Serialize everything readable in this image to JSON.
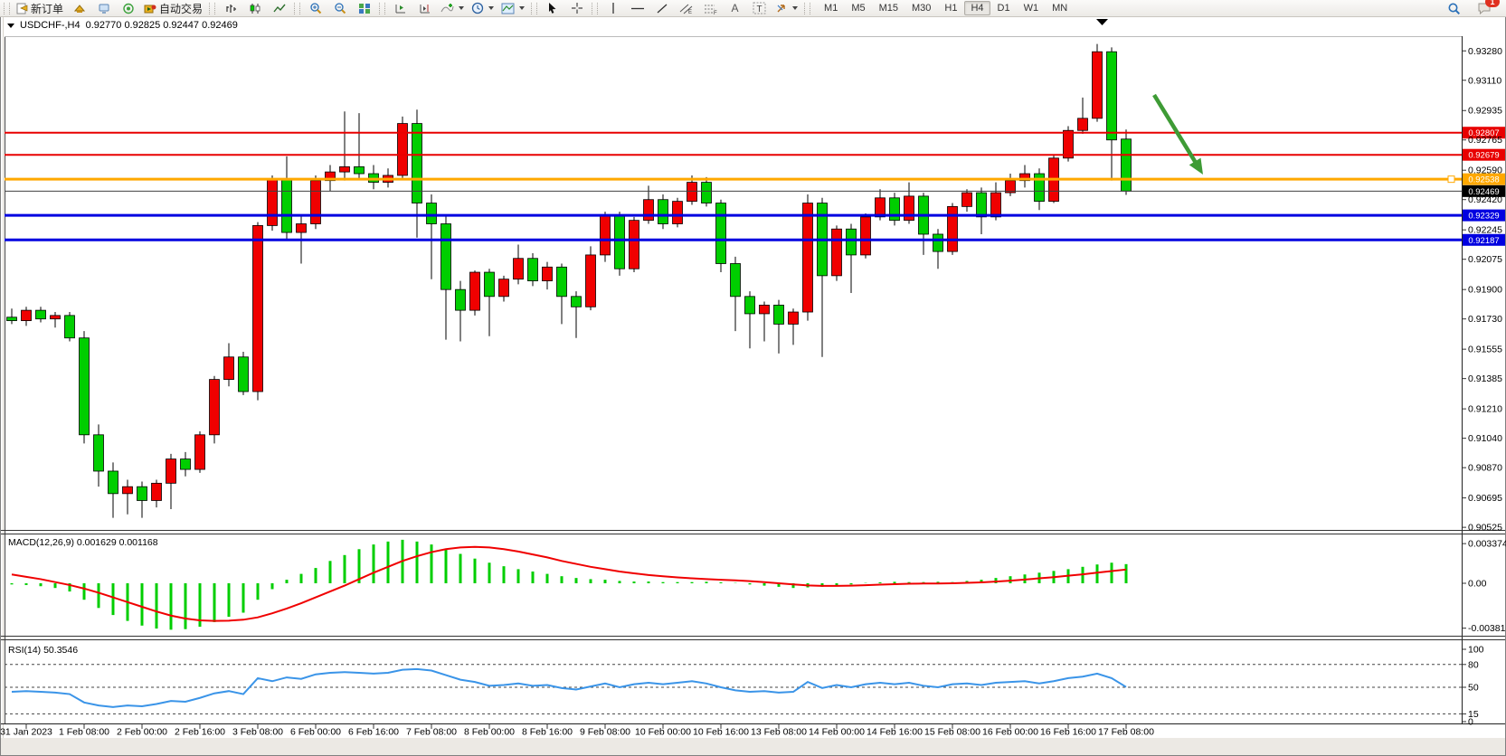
{
  "toolbar": {
    "new_order_label": "新订单",
    "autotrade_label": "自动交易",
    "text_tool_label": "A",
    "label_tool_label": "T",
    "timeframes": [
      "M1",
      "M5",
      "M15",
      "M30",
      "H1",
      "H4",
      "D1",
      "W1",
      "MN"
    ],
    "active_timeframe": "H4",
    "notification_count": "1"
  },
  "chart_window": {
    "title": {
      "symbol_period": "USDCHF-,H4",
      "ohlc": "0.92770 0.92825 0.92447 0.92469"
    }
  },
  "chart_data": [
    {
      "type": "candlestick",
      "symbol": "USDCHF-",
      "timeframe": "H4",
      "current": {
        "open": 0.9277,
        "high": 0.92825,
        "low": 0.92447,
        "close": 0.92469
      },
      "up_color": "#F00000",
      "down_color": "#00CE00",
      "ylim": [
        0.90515,
        0.93365
      ],
      "y_ticks": [
        "0.93280",
        "0.93110",
        "0.92935",
        "0.92765",
        "0.92590",
        "0.92420",
        "0.92245",
        "0.92075",
        "0.91900",
        "0.91730",
        "0.91555",
        "0.91385",
        "0.91210",
        "0.91040",
        "0.90870",
        "0.90695",
        "0.90525"
      ],
      "x_labels": [
        "31 Jan 2023",
        "1 Feb 08:00",
        "2 Feb 00:00",
        "2 Feb 16:00",
        "3 Feb 08:00",
        "6 Feb 00:00",
        "6 Feb 16:00",
        "7 Feb 08:00",
        "8 Feb 00:00",
        "8 Feb 16:00",
        "9 Feb 08:00",
        "10 Feb 00:00",
        "10 Feb 16:00",
        "13 Feb 08:00",
        "14 Feb 00:00",
        "14 Feb 16:00",
        "15 Feb 08:00",
        "16 Feb 00:00",
        "16 Feb 16:00",
        "17 Feb 08:00"
      ],
      "hlines": [
        {
          "price": 0.92807,
          "label": "0.92807",
          "color": "#E80000",
          "width": 2
        },
        {
          "price": 0.92679,
          "label": "0.92679",
          "color": "#E80000",
          "width": 2
        },
        {
          "price": 0.92538,
          "label": "0.92538",
          "color": "#FFA800",
          "width": 3,
          "handle": true
        },
        {
          "price": 0.92469,
          "label": "0.92469",
          "color": "#404040",
          "width": 1,
          "badge": "#000000"
        },
        {
          "price": 0.92329,
          "label": "0.92329",
          "color": "#0000E0",
          "width": 3
        },
        {
          "price": 0.92187,
          "label": "0.92187",
          "color": "#0000E0",
          "width": 3
        }
      ],
      "arrow_annotation": {
        "from": [
          1276,
          105
        ],
        "to": [
          1330,
          193
        ],
        "color": "#3E9B35"
      },
      "candles": [
        [
          0.9174,
          0.9179,
          0.917,
          0.9172
        ],
        [
          0.9172,
          0.918,
          0.9169,
          0.9178
        ],
        [
          0.9178,
          0.918,
          0.9171,
          0.9173
        ],
        [
          0.9173,
          0.9177,
          0.9168,
          0.9175
        ],
        [
          0.9175,
          0.9177,
          0.916,
          0.9162
        ],
        [
          0.9162,
          0.9166,
          0.9101,
          0.9106
        ],
        [
          0.9106,
          0.9112,
          0.9076,
          0.9085
        ],
        [
          0.9085,
          0.909,
          0.9058,
          0.9072
        ],
        [
          0.9072,
          0.908,
          0.906,
          0.9076
        ],
        [
          0.9076,
          0.9079,
          0.9058,
          0.9068
        ],
        [
          0.9068,
          0.908,
          0.9064,
          0.9078
        ],
        [
          0.9078,
          0.9095,
          0.9063,
          0.9092
        ],
        [
          0.9092,
          0.9096,
          0.9082,
          0.9086
        ],
        [
          0.9086,
          0.9108,
          0.9084,
          0.9106
        ],
        [
          0.9106,
          0.914,
          0.9101,
          0.9138
        ],
        [
          0.9138,
          0.9159,
          0.9134,
          0.9151
        ],
        [
          0.9151,
          0.9154,
          0.9129,
          0.9131
        ],
        [
          0.9131,
          0.9229,
          0.9126,
          0.9227
        ],
        [
          0.9227,
          0.9256,
          0.9224,
          0.9254
        ],
        [
          0.9254,
          0.9267,
          0.9219,
          0.9223
        ],
        [
          0.9223,
          0.9233,
          0.9205,
          0.9228
        ],
        [
          0.9228,
          0.9256,
          0.9225,
          0.9253
        ],
        [
          0.9253,
          0.9262,
          0.9247,
          0.9258
        ],
        [
          0.9258,
          0.9293,
          0.9253,
          0.9261
        ],
        [
          0.9261,
          0.9292,
          0.9254,
          0.9257
        ],
        [
          0.9257,
          0.9262,
          0.9248,
          0.9252
        ],
        [
          0.9252,
          0.926,
          0.9249,
          0.9256
        ],
        [
          0.9256,
          0.929,
          0.9254,
          0.9286
        ],
        [
          0.9286,
          0.9294,
          0.922,
          0.924
        ],
        [
          0.924,
          0.9245,
          0.9196,
          0.9228
        ],
        [
          0.9228,
          0.9233,
          0.9161,
          0.919
        ],
        [
          0.919,
          0.9195,
          0.916,
          0.9178
        ],
        [
          0.9178,
          0.9201,
          0.9175,
          0.92
        ],
        [
          0.92,
          0.9202,
          0.9163,
          0.9186
        ],
        [
          0.9186,
          0.9198,
          0.9183,
          0.9196
        ],
        [
          0.9196,
          0.9216,
          0.9193,
          0.9208
        ],
        [
          0.9208,
          0.9211,
          0.9192,
          0.9195
        ],
        [
          0.9195,
          0.9206,
          0.919,
          0.9203
        ],
        [
          0.9203,
          0.9205,
          0.917,
          0.9186
        ],
        [
          0.9186,
          0.9189,
          0.9162,
          0.918
        ],
        [
          0.918,
          0.9215,
          0.9178,
          0.921
        ],
        [
          0.921,
          0.9235,
          0.9206,
          0.9233
        ],
        [
          0.9233,
          0.9235,
          0.9198,
          0.9202
        ],
        [
          0.9202,
          0.9232,
          0.92,
          0.923
        ],
        [
          0.923,
          0.925,
          0.9228,
          0.9242
        ],
        [
          0.9242,
          0.9245,
          0.9225,
          0.9228
        ],
        [
          0.9228,
          0.9243,
          0.9226,
          0.9241
        ],
        [
          0.9241,
          0.9256,
          0.9239,
          0.9252
        ],
        [
          0.9252,
          0.9255,
          0.9238,
          0.924
        ],
        [
          0.924,
          0.9242,
          0.92,
          0.9205
        ],
        [
          0.9205,
          0.9209,
          0.9166,
          0.9186
        ],
        [
          0.9186,
          0.9189,
          0.9156,
          0.9176
        ],
        [
          0.9176,
          0.9183,
          0.916,
          0.9181
        ],
        [
          0.9181,
          0.9184,
          0.9153,
          0.917
        ],
        [
          0.917,
          0.9179,
          0.9158,
          0.9177
        ],
        [
          0.9177,
          0.9245,
          0.9172,
          0.924
        ],
        [
          0.924,
          0.9243,
          0.9151,
          0.9198
        ],
        [
          0.9198,
          0.9227,
          0.9195,
          0.9225
        ],
        [
          0.9225,
          0.9228,
          0.9188,
          0.921
        ],
        [
          0.921,
          0.9234,
          0.9208,
          0.9232
        ],
        [
          0.9232,
          0.9248,
          0.923,
          0.9243
        ],
        [
          0.9243,
          0.9246,
          0.9227,
          0.923
        ],
        [
          0.923,
          0.9252,
          0.9228,
          0.9244
        ],
        [
          0.9244,
          0.9246,
          0.921,
          0.9222
        ],
        [
          0.9222,
          0.9225,
          0.9202,
          0.9212
        ],
        [
          0.9212,
          0.924,
          0.921,
          0.9238
        ],
        [
          0.9238,
          0.9248,
          0.9235,
          0.9246
        ],
        [
          0.9246,
          0.9249,
          0.9222,
          0.9232
        ],
        [
          0.9232,
          0.9252,
          0.923,
          0.9246
        ],
        [
          0.9246,
          0.9257,
          0.9244,
          0.9253
        ],
        [
          0.9253,
          0.9262,
          0.9249,
          0.9257
        ],
        [
          0.9257,
          0.926,
          0.9236,
          0.9241
        ],
        [
          0.9241,
          0.9268,
          0.924,
          0.9266
        ],
        [
          0.9266,
          0.92845,
          0.9264,
          0.9282
        ],
        [
          0.9282,
          0.9301,
          0.928,
          0.9289
        ],
        [
          0.9289,
          0.9332,
          0.9287,
          0.93275
        ],
        [
          0.93275,
          0.933,
          0.9253,
          0.92765
        ],
        [
          0.9277,
          0.92825,
          0.92447,
          0.92469
        ]
      ]
    },
    {
      "type": "bar",
      "name": "MACD(12,26,9)",
      "values_text": "0.001629 0.001168",
      "hist_color": "#00CE00",
      "signal_color": "#F00000",
      "y_ticks": [
        {
          "v": 0.003374,
          "label": "0.003374"
        },
        {
          "v": 0.0,
          "label": "0.00"
        },
        {
          "v": -0.003819,
          "label": "-0.003819"
        }
      ],
      "hist": [
        -0.0001,
        -0.00015,
        -0.00025,
        -0.0004,
        -0.0007,
        -0.0014,
        -0.0021,
        -0.0027,
        -0.0032,
        -0.0036,
        -0.00385,
        -0.00395,
        -0.0039,
        -0.0037,
        -0.0033,
        -0.00285,
        -0.0025,
        -0.0014,
        -0.0005,
        0.0003,
        0.0008,
        0.0013,
        0.0019,
        0.0024,
        0.0029,
        0.0033,
        0.00355,
        0.0037,
        0.00355,
        0.0033,
        0.0029,
        0.0025,
        0.0021,
        0.00175,
        0.00145,
        0.0012,
        0.001,
        0.0008,
        0.0006,
        0.00045,
        0.00035,
        0.0003,
        0.0002,
        0.00015,
        0.00015,
        0.0001,
        0.0001,
        0.0001,
        5e-05,
        0,
        -5e-05,
        -0.0001,
        -0.0002,
        -0.0003,
        -0.0004,
        -0.00035,
        -0.0003,
        -0.0002,
        -0.0001,
        -5e-05,
        0,
        5e-05,
        0.0001,
        0.0001,
        5e-05,
        0.0001,
        0.0002,
        0.0003,
        0.00045,
        0.0006,
        0.00075,
        0.0009,
        0.00105,
        0.0012,
        0.0014,
        0.0016,
        0.00175,
        0.001629
      ],
      "signal": [
        0.00075,
        0.00055,
        0.00035,
        0.0001,
        -0.00015,
        -0.00045,
        -0.0008,
        -0.0012,
        -0.0016,
        -0.002,
        -0.0024,
        -0.00275,
        -0.003,
        -0.00315,
        -0.0032,
        -0.00318,
        -0.0031,
        -0.0029,
        -0.00255,
        -0.00215,
        -0.0017,
        -0.0012,
        -0.0007,
        -0.0002,
        0.00035,
        0.0009,
        0.0014,
        0.0019,
        0.0023,
        0.00265,
        0.0029,
        0.00305,
        0.0031,
        0.00305,
        0.0029,
        0.0027,
        0.00245,
        0.0022,
        0.0019,
        0.00165,
        0.0014,
        0.0012,
        0.001,
        0.00085,
        0.0007,
        0.0006,
        0.0005,
        0.00042,
        0.00036,
        0.0003,
        0.00025,
        0.00018,
        0.0001,
        0,
        -0.0001,
        -0.00018,
        -0.00022,
        -0.00022,
        -0.0002,
        -0.00016,
        -0.00012,
        -8e-05,
        -4e-05,
        -2e-05,
        -2e-05,
        0,
        4e-05,
        8e-05,
        0.00014,
        0.00022,
        0.00032,
        0.00042,
        0.00052,
        0.00064,
        0.00076,
        0.0009,
        0.00104,
        0.001168
      ]
    },
    {
      "type": "line",
      "name": "RSI(14)",
      "values_text": "50.3546",
      "color": "#3A94E8",
      "range": [
        0,
        100
      ],
      "levels": [
        80,
        50,
        15
      ],
      "y_ticks": [
        {
          "v": 100,
          "label": "100"
        },
        {
          "v": 80,
          "label": "80"
        },
        {
          "v": 50,
          "label": "50"
        },
        {
          "v": 15,
          "label": "15"
        },
        {
          "v": 0,
          "label": "0"
        }
      ],
      "values": [
        44,
        45,
        44,
        43,
        41,
        30,
        26,
        24,
        26,
        25,
        28,
        32,
        31,
        36,
        42,
        45,
        41,
        62,
        58,
        63,
        61,
        67,
        69,
        70,
        69,
        68,
        69,
        73,
        74,
        72,
        66,
        60,
        57,
        52,
        53,
        55,
        52,
        53,
        49,
        47,
        51,
        55,
        50,
        54,
        56,
        54,
        56,
        58,
        55,
        50,
        46,
        44,
        45,
        43,
        44,
        57,
        49,
        53,
        50,
        54,
        56,
        54,
        56,
        52,
        50,
        54,
        55,
        53,
        56,
        57,
        58,
        55,
        58,
        62,
        64,
        68,
        62,
        50.35
      ]
    }
  ]
}
